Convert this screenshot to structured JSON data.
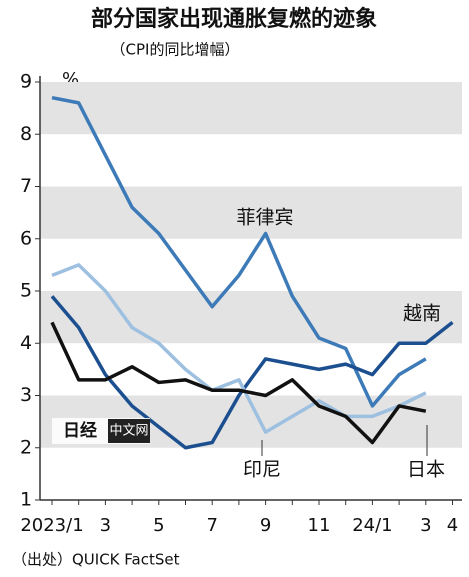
{
  "chart_data": {
    "type": "line",
    "title": "部分国家出现通胀复燃的迹象",
    "subtitle": "（CPI的同比增幅）",
    "y_unit": "%",
    "source": "（出处）QUICK FactSet",
    "watermark": [
      "日经",
      "中文网"
    ],
    "categories": [
      "2023/1",
      null,
      "3",
      null,
      "5",
      null,
      "7",
      null,
      "9",
      null,
      "11",
      null,
      "24/1",
      null,
      "3",
      "4"
    ],
    "ylim": [
      1,
      9
    ],
    "yticks": [
      1,
      2,
      3,
      4,
      5,
      6,
      7,
      8,
      9
    ],
    "bands": true,
    "series": [
      {
        "name": "菲律宾",
        "color": "#3d7ab8",
        "values": [
          8.7,
          8.6,
          7.6,
          6.6,
          6.1,
          5.4,
          4.7,
          5.3,
          6.1,
          4.9,
          4.1,
          3.9,
          2.8,
          3.4,
          3.7,
          null
        ]
      },
      {
        "name": "越南",
        "color": "#1c4f8f",
        "values": [
          4.9,
          4.3,
          3.4,
          2.8,
          2.4,
          2.0,
          2.1,
          3.0,
          3.7,
          3.6,
          3.5,
          3.6,
          3.4,
          4.0,
          4.0,
          4.4
        ]
      },
      {
        "name": "印尼",
        "color": "#9dbfe0",
        "values": [
          5.3,
          5.5,
          5.0,
          4.3,
          4.0,
          3.5,
          3.1,
          3.3,
          2.3,
          2.6,
          2.9,
          2.6,
          2.6,
          2.8,
          3.05,
          null
        ]
      },
      {
        "name": "日本",
        "color": "#111111",
        "values": [
          4.4,
          3.3,
          3.3,
          3.55,
          3.25,
          3.3,
          3.1,
          3.1,
          3.0,
          3.3,
          2.8,
          2.6,
          2.1,
          2.8,
          2.7,
          null
        ]
      }
    ]
  }
}
